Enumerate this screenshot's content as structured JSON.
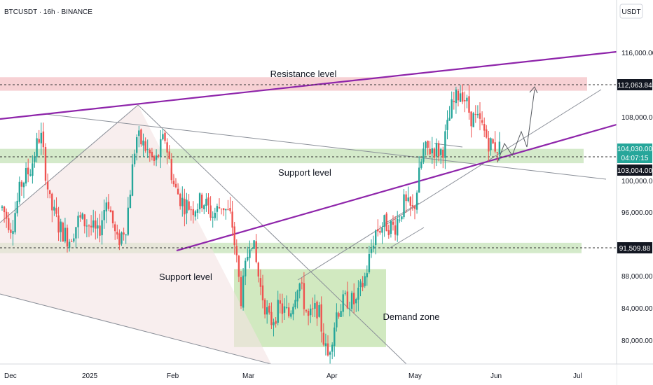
{
  "header": {
    "symbol_title": "BTCUSDT · 16h · BINANCE"
  },
  "axis": {
    "currency": "USDT",
    "y_ticks": [
      "116,000.00",
      "108,000.00",
      "100,000.00",
      "96,000.00",
      "88,000.00",
      "84,000.00",
      "80,000.00"
    ],
    "x_ticks": [
      "Dec",
      "2025",
      "Feb",
      "Mar",
      "Apr",
      "May",
      "Jun",
      "Jul"
    ]
  },
  "price_tags": {
    "resistance": "112,063.84",
    "last_price": "104,030.00",
    "countdown": "04:07:15",
    "support_upper": "103,004.00",
    "support_lower": "91,509.88"
  },
  "annotations": {
    "resistance": "Resistance level",
    "support_upper": "Support level",
    "support_lower": "Support level",
    "demand": "Demand zone"
  },
  "colors": {
    "up": "#26a69a",
    "down": "#ef5350",
    "channel": "#8e24aa",
    "resistance_zone": "#f6c9cc",
    "support_zone": "#cfe8c4",
    "demand_zone": "#c5e3b0",
    "last_tag": "#26a69a",
    "level_tag": "#131722"
  },
  "chart_data": {
    "type": "candlestick",
    "symbol": "BTCUSDT",
    "interval": "16h",
    "exchange": "BINANCE",
    "y_range": [
      76800,
      119800
    ],
    "y_scale": "linear",
    "x_labels": [
      "Dec",
      "2025",
      "Feb",
      "Mar",
      "Apr",
      "May",
      "Jun",
      "Jul"
    ],
    "close_path": [
      [
        "Dec",
        96500
      ],
      [
        "Dec",
        94000
      ],
      [
        "Dec",
        99500
      ],
      [
        "Dec",
        101500
      ],
      [
        "Dec",
        106000
      ],
      [
        "Dec",
        97000
      ],
      [
        "Dec",
        94000
      ],
      [
        "Dec",
        92500
      ],
      [
        "Dec",
        95000
      ],
      [
        "2025",
        94500
      ],
      [
        "2025",
        93000
      ],
      [
        "2025",
        98000
      ],
      [
        "2025",
        92000
      ],
      [
        "2025",
        94500
      ],
      [
        "2025",
        105500
      ],
      [
        "2025",
        104000
      ],
      [
        "2025",
        102000
      ],
      [
        "2025",
        105500
      ],
      [
        "Feb",
        99000
      ],
      [
        "Feb",
        97000
      ],
      [
        "Feb",
        96500
      ],
      [
        "Feb",
        97500
      ],
      [
        "Feb",
        95500
      ],
      [
        "Feb",
        97000
      ],
      [
        "Feb",
        95000
      ],
      [
        "Mar",
        85000
      ],
      [
        "Mar",
        93500
      ],
      [
        "Mar",
        86500
      ],
      [
        "Mar",
        82000
      ],
      [
        "Mar",
        84000
      ],
      [
        "Mar",
        83000
      ],
      [
        "Mar",
        87500
      ],
      [
        "Apr",
        82500
      ],
      [
        "Apr",
        84000
      ],
      [
        "Apr",
        77500
      ],
      [
        "Apr",
        83500
      ],
      [
        "Apr",
        85000
      ],
      [
        "Apr",
        84500
      ],
      [
        "Apr",
        88000
      ],
      [
        "Apr",
        93500
      ],
      [
        "Apr",
        94500
      ],
      [
        "Apr",
        94000
      ],
      [
        "May",
        97000
      ],
      [
        "May",
        96000
      ],
      [
        "May",
        103500
      ],
      [
        "May",
        104000
      ],
      [
        "May",
        103500
      ],
      [
        "May",
        109000
      ],
      [
        "May",
        111500
      ],
      [
        "May",
        108000
      ],
      [
        "May",
        107000
      ],
      [
        "Jun",
        104500
      ],
      [
        "Jun",
        104000
      ]
    ],
    "horizontal_levels": {
      "resistance": 112063.84,
      "last_price": 104030.0,
      "support_upper": 103004.0,
      "support_lower": 91509.88
    },
    "zones": {
      "resistance_level": [
        111200,
        112900
      ],
      "support_level_upper": [
        102100,
        103900
      ],
      "support_level_lower": [
        90800,
        92100
      ],
      "demand_zone": [
        79000,
        88800
      ]
    }
  }
}
